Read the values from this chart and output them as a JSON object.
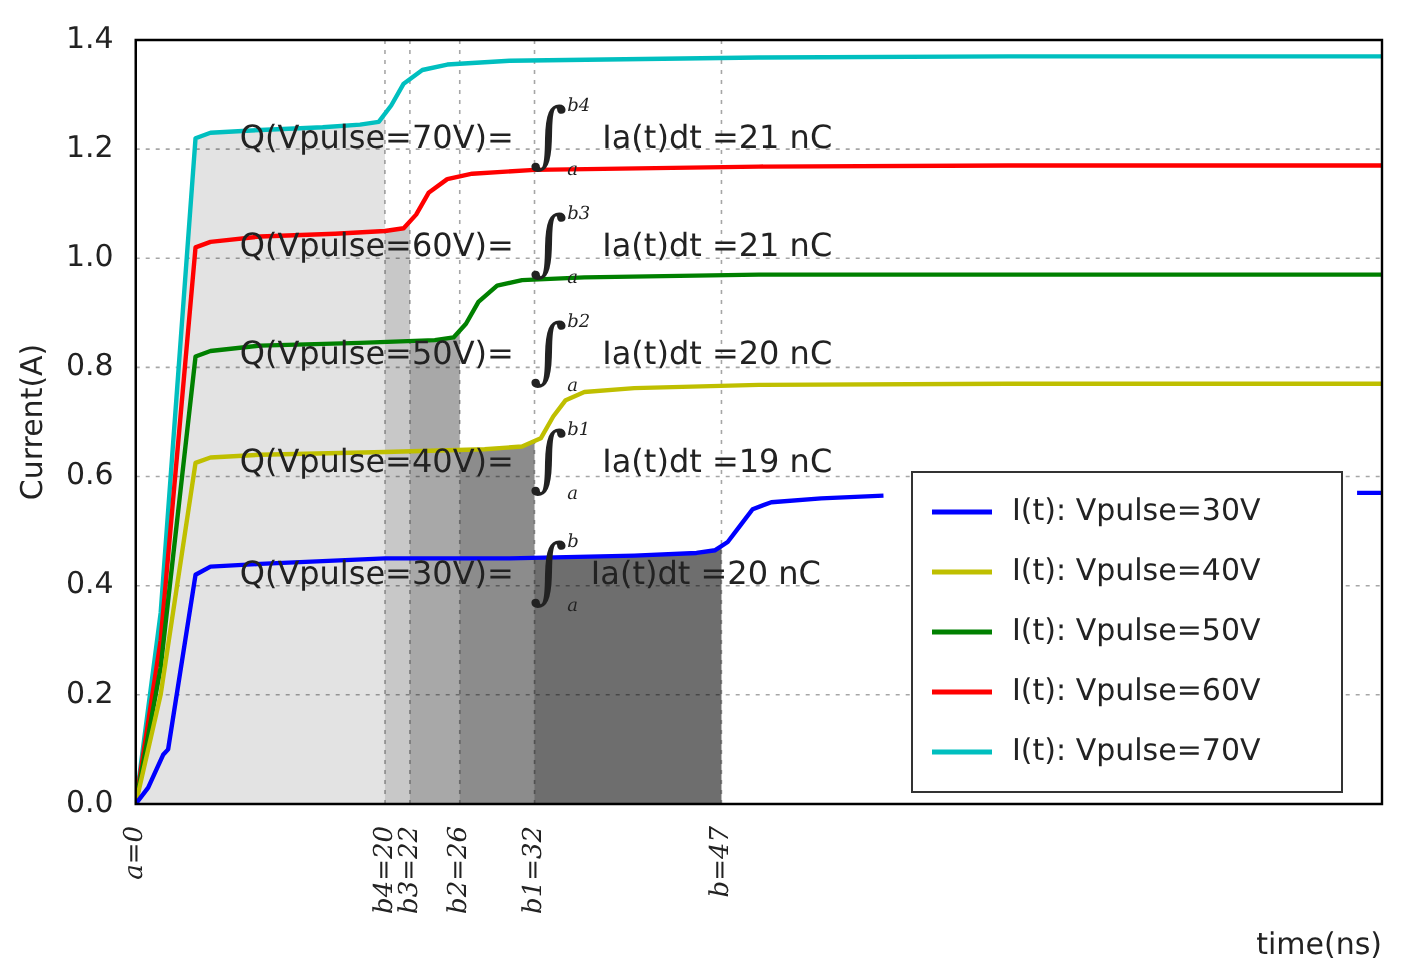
{
  "chart_data": {
    "type": "line",
    "xlabel": "time(ns)",
    "ylabel": "Current(A)",
    "xlim": [
      0,
      100
    ],
    "xticks": [
      {
        "value": 0,
        "label": "a=0"
      },
      {
        "value": 20,
        "label": "b4=20"
      },
      {
        "value": 22,
        "label": "b3=22"
      },
      {
        "value": 26,
        "label": "b2=26"
      },
      {
        "value": 32,
        "label": "b1=32"
      },
      {
        "value": 47,
        "label": "b=47"
      }
    ],
    "ylim": [
      0,
      1.4
    ],
    "yticks": [
      {
        "value": 0,
        "label": "0.0"
      },
      0.2,
      0.4,
      0.6,
      0.8,
      {
        "value": 1,
        "label": "1.0"
      },
      1.2,
      1.4
    ],
    "grid": true,
    "legend": "bottom right",
    "marker": "none",
    "line_style": "solid",
    "series": [
      {
        "name": "I(t): Vpulse=30V",
        "color": "#0000ff",
        "x": [
          0,
          1,
          2.2,
          2.6,
          4.8,
          6,
          10,
          20,
          30,
          40,
          45,
          46.5,
          47.5,
          48.5,
          49.5,
          51,
          55,
          60,
          70,
          98,
          100
        ],
        "values": [
          0,
          0.03,
          0.09,
          0.1,
          0.42,
          0.435,
          0.44,
          0.45,
          0.45,
          0.455,
          0.46,
          0.465,
          0.48,
          0.51,
          0.54,
          0.553,
          0.56,
          0.565,
          null,
          0.57,
          0.57
        ]
      },
      {
        "name": "I(t): Vpulse=40V",
        "color": "#bfbf00",
        "x": [
          0,
          2,
          4.8,
          6,
          10,
          20,
          28,
          31,
          32.5,
          33.5,
          34.5,
          36,
          40,
          50,
          70,
          100
        ],
        "values": [
          0,
          0.2,
          0.625,
          0.635,
          0.64,
          0.645,
          0.65,
          0.655,
          0.67,
          0.71,
          0.74,
          0.755,
          0.762,
          0.768,
          0.77,
          0.77
        ]
      },
      {
        "name": "I(t): Vpulse=50V",
        "color": "#008000",
        "x": [
          0,
          2,
          4.8,
          6,
          10,
          18,
          24,
          25.5,
          26.5,
          27.5,
          29,
          31,
          36,
          50,
          70,
          100
        ],
        "values": [
          0,
          0.25,
          0.82,
          0.83,
          0.84,
          0.845,
          0.85,
          0.855,
          0.88,
          0.92,
          0.95,
          0.96,
          0.965,
          0.97,
          0.97,
          0.97
        ]
      },
      {
        "name": "I(t): Vpulse=60V",
        "color": "#ff0000",
        "x": [
          0,
          2,
          4.8,
          6,
          10,
          16,
          20,
          21.5,
          22.5,
          23.5,
          25,
          27,
          32,
          50,
          70,
          100
        ],
        "values": [
          0,
          0.3,
          1.02,
          1.03,
          1.04,
          1.045,
          1.05,
          1.055,
          1.08,
          1.12,
          1.145,
          1.155,
          1.162,
          1.168,
          1.17,
          1.17
        ]
      },
      {
        "name": "I(t): Vpulse=70V",
        "color": "#00bfbf",
        "x": [
          0,
          2,
          4.8,
          6,
          10,
          15,
          18,
          19.5,
          20.5,
          21.5,
          23,
          25,
          30,
          50,
          70,
          100
        ],
        "values": [
          0,
          0.35,
          1.22,
          1.23,
          1.235,
          1.24,
          1.245,
          1.25,
          1.28,
          1.32,
          1.345,
          1.355,
          1.362,
          1.368,
          1.37,
          1.37
        ]
      }
    ],
    "bands": [
      {
        "axis": "x",
        "from": 0,
        "to": 47,
        "color": "#6e6e6e"
      },
      {
        "axis": "x",
        "from": 0,
        "to": 32,
        "color": "#8c8c8c"
      },
      {
        "axis": "x",
        "from": 0,
        "to": 26,
        "color": "#a8a8a8"
      },
      {
        "axis": "x",
        "from": 0,
        "to": 22,
        "color": "#c8c8c8"
      },
      {
        "axis": "x",
        "from": 0,
        "to": 20,
        "color": "#e3e3e3"
      }
    ],
    "annotations": [
      "Q(Vpulse=70V)=∫$_{a}$$^{b4}$Ia(t)dt =21 nC",
      "Q(Vpulse=60V)=∫$_{a}$$^{b3}$Ia(t)dt =21 nC",
      "Q(Vpulse=50V)=∫$_{a}$$^{b2}$Ia(t)dt =20 nC",
      "Q(Vpulse=40V)=∫$_{a}$$^{b1}$Ia(t)dt =19 nC",
      "Q(Vpulse=30V)=∫$_{a}$$^{b}$Ia(t)dt =20 nC"
    ]
  }
}
